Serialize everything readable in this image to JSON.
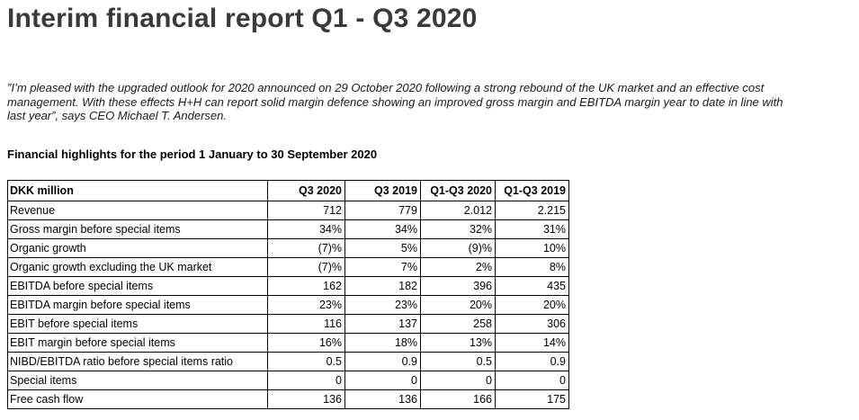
{
  "document": {
    "title": "Interim financial report Q1 - Q3 2020",
    "quote_lines": [
      "”I’m pleased with the upgraded outlook for 2020 announced on 29 October 2020 following a strong rebound of the UK market and an effective cost",
      "management. With these effects H+H can report solid margin defence showing an improved gross margin and EBITDA margin year to date in line with",
      "last year”, says CEO Michael T. Andersen."
    ],
    "highlights_heading": "Financial highlights for the period 1 January to 30 September 2020"
  },
  "table": {
    "columns": [
      "DKK million",
      "Q3 2020",
      "Q3 2019",
      "Q1-Q3 2020",
      "Q1-Q3 2019"
    ],
    "rows": [
      [
        "Revenue",
        "712",
        "779",
        "2.012",
        "2.215"
      ],
      [
        "Gross margin before special items",
        "34%",
        "34%",
        "32%",
        "31%"
      ],
      [
        "Organic growth",
        "(7)%",
        "5%",
        "(9)%",
        "10%"
      ],
      [
        "Organic growth excluding the UK market",
        "(7)%",
        "7%",
        "2%",
        "8%"
      ],
      [
        "EBITDA before special items",
        "162",
        "182",
        "396",
        "435"
      ],
      [
        "EBITDA margin before special items",
        "23%",
        "23%",
        "20%",
        "20%"
      ],
      [
        "EBIT before special items",
        "116",
        "137",
        "258",
        "306"
      ],
      [
        "EBIT margin before special items",
        "16%",
        "18%",
        "13%",
        "14%"
      ],
      [
        "NIBD/EBITDA ratio before special items ratio",
        "0.5",
        "0.9",
        "0.5",
        "0.9"
      ],
      [
        "Special items",
        "0",
        "0",
        "0",
        "0"
      ],
      [
        "Free cash flow",
        "136",
        "136",
        "166",
        "175"
      ]
    ]
  },
  "colors": {
    "title_text": "#3a3a3a",
    "body_text": "#000000",
    "table_border": "#000000",
    "background": "#ffffff"
  }
}
